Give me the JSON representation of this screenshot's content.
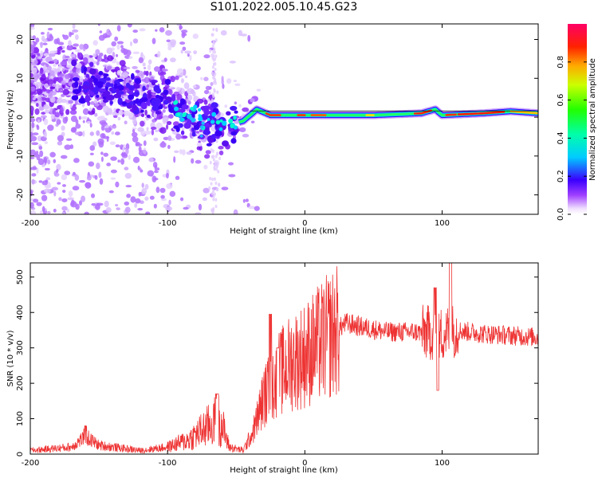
{
  "title": "S101.2022.005.10.45.G23",
  "chart_data": [
    {
      "type": "heatmap",
      "name": "spectrogram",
      "xlabel": "Height of straight line (km)",
      "ylabel": "Frequency (Hz)",
      "xlim": [
        -200,
        170
      ],
      "ylim": [
        -25,
        24
      ],
      "xticks": [
        -200,
        -100,
        0,
        100
      ],
      "xtick_labels": [
        "-200",
        "-100",
        "0",
        "100"
      ],
      "yticks": [
        -20,
        -10,
        0,
        10,
        20
      ],
      "ytick_labels": [
        "-20",
        "-10",
        "0",
        "10",
        "20"
      ],
      "colorbar": {
        "label": "Normalized spectral amplitude",
        "range": [
          0,
          1
        ],
        "ticks": [
          0.0,
          0.2,
          0.4,
          0.6,
          0.8
        ],
        "tick_labels": [
          "0.0",
          "0.2",
          "0.4",
          "0.6",
          "0.8"
        ]
      },
      "ridge": [
        {
          "x": -160,
          "f": 9
        },
        {
          "x": -130,
          "f": 6
        },
        {
          "x": -100,
          "f": 4
        },
        {
          "x": -85,
          "f": 0
        },
        {
          "x": -70,
          "f": -2
        },
        {
          "x": -55,
          "f": -2
        },
        {
          "x": -45,
          "f": -1
        },
        {
          "x": -35,
          "f": 2
        },
        {
          "x": -25,
          "f": 0.5
        },
        {
          "x": 0,
          "f": 0.5
        },
        {
          "x": 50,
          "f": 0.5
        },
        {
          "x": 85,
          "f": 1
        },
        {
          "x": 95,
          "f": 2
        },
        {
          "x": 100,
          "f": 0.5
        },
        {
          "x": 130,
          "f": 1
        },
        {
          "x": 150,
          "f": 1.5
        },
        {
          "x": 170,
          "f": 1
        }
      ]
    },
    {
      "type": "line",
      "name": "snr",
      "xlabel": "Height of straight line (km)",
      "ylabel": "SNR (10 * v/v)",
      "xlim": [
        -200,
        170
      ],
      "ylim": [
        0,
        540
      ],
      "xticks": [
        -200,
        -100,
        0,
        100
      ],
      "xtick_labels": [
        "-200",
        "-100",
        "0",
        "100"
      ],
      "yticks": [
        0,
        100,
        200,
        300,
        400,
        500
      ],
      "ytick_labels": [
        "0",
        "100",
        "200",
        "300",
        "400",
        "500"
      ],
      "color": "#ee3333",
      "trend": [
        {
          "x": -200,
          "y": 10
        },
        {
          "x": -170,
          "y": 20
        },
        {
          "x": -160,
          "y": 50
        },
        {
          "x": -150,
          "y": 25
        },
        {
          "x": -120,
          "y": 10
        },
        {
          "x": -100,
          "y": 20
        },
        {
          "x": -85,
          "y": 40
        },
        {
          "x": -70,
          "y": 80
        },
        {
          "x": -62,
          "y": 100
        },
        {
          "x": -55,
          "y": 20
        },
        {
          "x": -45,
          "y": 10
        },
        {
          "x": -38,
          "y": 60
        },
        {
          "x": -30,
          "y": 160
        },
        {
          "x": -20,
          "y": 220
        },
        {
          "x": -10,
          "y": 260
        },
        {
          "x": 0,
          "y": 280
        },
        {
          "x": 10,
          "y": 310
        },
        {
          "x": 20,
          "y": 340
        },
        {
          "x": 30,
          "y": 370
        },
        {
          "x": 40,
          "y": 360
        },
        {
          "x": 60,
          "y": 345
        },
        {
          "x": 80,
          "y": 345
        },
        {
          "x": 100,
          "y": 340
        },
        {
          "x": 110,
          "y": 350
        },
        {
          "x": 130,
          "y": 340
        },
        {
          "x": 170,
          "y": 330
        }
      ],
      "peaks": [
        {
          "x": -160,
          "y": 80
        },
        {
          "x": -64,
          "y": 170
        },
        {
          "x": -25,
          "y": 395
        },
        {
          "x": -20,
          "y": 300
        },
        {
          "x": 95,
          "y": 470
        },
        {
          "x": 97,
          "y": 180
        },
        {
          "x": 106,
          "y": 540
        }
      ]
    }
  ]
}
